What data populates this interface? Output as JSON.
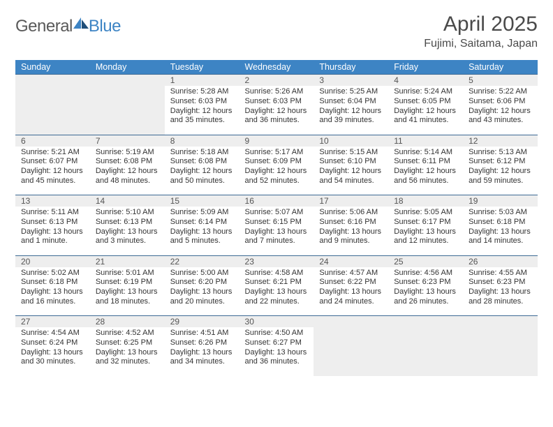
{
  "brand": {
    "part1": "General",
    "part2": "Blue"
  },
  "title": "April 2025",
  "location": "Fujimi, Saitama, Japan",
  "colors": {
    "header_bg": "#3d84c4",
    "header_text": "#ffffff",
    "daynum_bg": "#eeeeee",
    "border_top": "#3d6a94",
    "body_text": "#333333",
    "title_text": "#4a4a4a",
    "logo_gray": "#5a5a5a",
    "logo_blue": "#3d84c4"
  },
  "weekdays": [
    "Sunday",
    "Monday",
    "Tuesday",
    "Wednesday",
    "Thursday",
    "Friday",
    "Saturday"
  ],
  "layout": {
    "first_weekday_index": 2,
    "days_in_month": 30
  },
  "days": [
    {
      "n": 1,
      "sunrise": "5:28 AM",
      "sunset": "6:03 PM",
      "daylight": "12 hours and 35 minutes."
    },
    {
      "n": 2,
      "sunrise": "5:26 AM",
      "sunset": "6:03 PM",
      "daylight": "12 hours and 36 minutes."
    },
    {
      "n": 3,
      "sunrise": "5:25 AM",
      "sunset": "6:04 PM",
      "daylight": "12 hours and 39 minutes."
    },
    {
      "n": 4,
      "sunrise": "5:24 AM",
      "sunset": "6:05 PM",
      "daylight": "12 hours and 41 minutes."
    },
    {
      "n": 5,
      "sunrise": "5:22 AM",
      "sunset": "6:06 PM",
      "daylight": "12 hours and 43 minutes."
    },
    {
      "n": 6,
      "sunrise": "5:21 AM",
      "sunset": "6:07 PM",
      "daylight": "12 hours and 45 minutes."
    },
    {
      "n": 7,
      "sunrise": "5:19 AM",
      "sunset": "6:08 PM",
      "daylight": "12 hours and 48 minutes."
    },
    {
      "n": 8,
      "sunrise": "5:18 AM",
      "sunset": "6:08 PM",
      "daylight": "12 hours and 50 minutes."
    },
    {
      "n": 9,
      "sunrise": "5:17 AM",
      "sunset": "6:09 PM",
      "daylight": "12 hours and 52 minutes."
    },
    {
      "n": 10,
      "sunrise": "5:15 AM",
      "sunset": "6:10 PM",
      "daylight": "12 hours and 54 minutes."
    },
    {
      "n": 11,
      "sunrise": "5:14 AM",
      "sunset": "6:11 PM",
      "daylight": "12 hours and 56 minutes."
    },
    {
      "n": 12,
      "sunrise": "5:13 AM",
      "sunset": "6:12 PM",
      "daylight": "12 hours and 59 minutes."
    },
    {
      "n": 13,
      "sunrise": "5:11 AM",
      "sunset": "6:13 PM",
      "daylight": "13 hours and 1 minute."
    },
    {
      "n": 14,
      "sunrise": "5:10 AM",
      "sunset": "6:13 PM",
      "daylight": "13 hours and 3 minutes."
    },
    {
      "n": 15,
      "sunrise": "5:09 AM",
      "sunset": "6:14 PM",
      "daylight": "13 hours and 5 minutes."
    },
    {
      "n": 16,
      "sunrise": "5:07 AM",
      "sunset": "6:15 PM",
      "daylight": "13 hours and 7 minutes."
    },
    {
      "n": 17,
      "sunrise": "5:06 AM",
      "sunset": "6:16 PM",
      "daylight": "13 hours and 9 minutes."
    },
    {
      "n": 18,
      "sunrise": "5:05 AM",
      "sunset": "6:17 PM",
      "daylight": "13 hours and 12 minutes."
    },
    {
      "n": 19,
      "sunrise": "5:03 AM",
      "sunset": "6:18 PM",
      "daylight": "13 hours and 14 minutes."
    },
    {
      "n": 20,
      "sunrise": "5:02 AM",
      "sunset": "6:18 PM",
      "daylight": "13 hours and 16 minutes."
    },
    {
      "n": 21,
      "sunrise": "5:01 AM",
      "sunset": "6:19 PM",
      "daylight": "13 hours and 18 minutes."
    },
    {
      "n": 22,
      "sunrise": "5:00 AM",
      "sunset": "6:20 PM",
      "daylight": "13 hours and 20 minutes."
    },
    {
      "n": 23,
      "sunrise": "4:58 AM",
      "sunset": "6:21 PM",
      "daylight": "13 hours and 22 minutes."
    },
    {
      "n": 24,
      "sunrise": "4:57 AM",
      "sunset": "6:22 PM",
      "daylight": "13 hours and 24 minutes."
    },
    {
      "n": 25,
      "sunrise": "4:56 AM",
      "sunset": "6:23 PM",
      "daylight": "13 hours and 26 minutes."
    },
    {
      "n": 26,
      "sunrise": "4:55 AM",
      "sunset": "6:23 PM",
      "daylight": "13 hours and 28 minutes."
    },
    {
      "n": 27,
      "sunrise": "4:54 AM",
      "sunset": "6:24 PM",
      "daylight": "13 hours and 30 minutes."
    },
    {
      "n": 28,
      "sunrise": "4:52 AM",
      "sunset": "6:25 PM",
      "daylight": "13 hours and 32 minutes."
    },
    {
      "n": 29,
      "sunrise": "4:51 AM",
      "sunset": "6:26 PM",
      "daylight": "13 hours and 34 minutes."
    },
    {
      "n": 30,
      "sunrise": "4:50 AM",
      "sunset": "6:27 PM",
      "daylight": "13 hours and 36 minutes."
    }
  ],
  "labels": {
    "sunrise": "Sunrise: ",
    "sunset": "Sunset: ",
    "daylight": "Daylight: "
  }
}
